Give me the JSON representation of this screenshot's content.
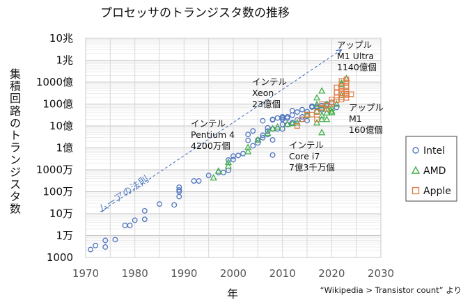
{
  "chart_data": {
    "type": "scatter",
    "title": "プロセッサのトランジスタ数の推移",
    "xlabel": "年",
    "ylabel": "集積回路のトランジスタ数",
    "x_ticks": [
      "1970",
      "1980",
      "1990",
      "2000",
      "2010",
      "2020",
      "2030"
    ],
    "xlim": [
      1970,
      2030
    ],
    "y_scale": "log",
    "ylim": [
      1000,
      10000000000000
    ],
    "y_ticks": [
      {
        "value": 1000,
        "label": "1000"
      },
      {
        "value": 10000,
        "label": "1万"
      },
      {
        "value": 100000,
        "label": "10万"
      },
      {
        "value": 1000000,
        "label": "100万"
      },
      {
        "value": 10000000,
        "label": "1000万"
      },
      {
        "value": 100000000,
        "label": "1億"
      },
      {
        "value": 1000000000,
        "label": "10億"
      },
      {
        "value": 10000000000,
        "label": "100億"
      },
      {
        "value": 100000000000,
        "label": "1000億"
      },
      {
        "value": 1000000000000,
        "label": "1兆"
      },
      {
        "value": 10000000000000,
        "label": "10兆"
      }
    ],
    "grid": true,
    "legend_position": "right",
    "series": [
      {
        "name": "Intel",
        "marker": "circle",
        "color": "#4f74c0",
        "points": [
          [
            1971,
            2300
          ],
          [
            1972,
            3500
          ],
          [
            1974,
            3000
          ],
          [
            1974,
            6000
          ],
          [
            1976,
            6500
          ],
          [
            1978,
            29000
          ],
          [
            1979,
            29000
          ],
          [
            1980,
            50000
          ],
          [
            1982,
            55000
          ],
          [
            1982,
            134000
          ],
          [
            1985,
            275000
          ],
          [
            1988,
            250000
          ],
          [
            1989,
            1000000
          ],
          [
            1989,
            1200000
          ],
          [
            1989,
            1600000
          ],
          [
            1989,
            600000
          ],
          [
            1992,
            3100000
          ],
          [
            1993,
            3100000
          ],
          [
            1995,
            5500000
          ],
          [
            1997,
            7500000
          ],
          [
            1998,
            7500000
          ],
          [
            1999,
            9500000
          ],
          [
            1999,
            28000000
          ],
          [
            2000,
            42000000
          ],
          [
            2000,
            29000000
          ],
          [
            2001,
            45000000
          ],
          [
            2002,
            55000000
          ],
          [
            2003,
            220000000
          ],
          [
            2003,
            410000000
          ],
          [
            2004,
            592000000
          ],
          [
            2004,
            125000000
          ],
          [
            2005,
            230000000
          ],
          [
            2005,
            169000000
          ],
          [
            2006,
            291000000
          ],
          [
            2006,
            1720000000
          ],
          [
            2006,
            376000000
          ],
          [
            2007,
            410000000
          ],
          [
            2007,
            820000000
          ],
          [
            2008,
            731000000
          ],
          [
            2008,
            1900000000
          ],
          [
            2008,
            47000000
          ],
          [
            2008,
            2000000000
          ],
          [
            2009,
            2300000000
          ],
          [
            2010,
            1170000000
          ],
          [
            2010,
            2300000000
          ],
          [
            2010,
            2600000000
          ],
          [
            2010,
            2000000000
          ],
          [
            2011,
            2270000000
          ],
          [
            2011,
            2600000000
          ],
          [
            2012,
            3100000000
          ],
          [
            2012,
            5000000000
          ],
          [
            2012,
            1400000000
          ],
          [
            2013,
            4310000000
          ],
          [
            2014,
            5560000000
          ],
          [
            2014,
            2600000000
          ],
          [
            2015,
            4500000000
          ],
          [
            2016,
            7200000000
          ],
          [
            2016,
            8000000000
          ],
          [
            2017,
            7000000000
          ],
          [
            2017,
            8000000000
          ],
          [
            2018,
            5500000000
          ],
          [
            2018,
            8500000000
          ],
          [
            2019,
            10000000000
          ],
          [
            2020,
            12000000000
          ],
          [
            2021,
            7000000000
          ],
          [
            2014,
            2000000000
          ],
          [
            2010,
            730000000
          ],
          [
            2015,
            1750000000
          ],
          [
            2013,
            1860000000
          ],
          [
            2011,
            1160000000
          ],
          [
            2007,
            582000000
          ],
          [
            2008,
            230000000
          ],
          [
            2009,
            731000000
          ],
          [
            2012,
            1400000000
          ],
          [
            2019,
            8000000000
          ]
        ]
      },
      {
        "name": "AMD",
        "marker": "triangle",
        "color": "#3fae49",
        "points": [
          [
            1996,
            4300000
          ],
          [
            1997,
            8800000
          ],
          [
            1999,
            22000000
          ],
          [
            1999,
            15000000
          ],
          [
            2003,
            105000000
          ],
          [
            2003,
            68000000
          ],
          [
            2005,
            233000000
          ],
          [
            2007,
            463000000
          ],
          [
            2008,
            758000000
          ],
          [
            2009,
            904000000
          ],
          [
            2011,
            1200000000
          ],
          [
            2012,
            1300000000
          ],
          [
            2013,
            1400000000
          ],
          [
            2015,
            3100000000
          ],
          [
            2017,
            4800000000
          ],
          [
            2017,
            19200000000
          ],
          [
            2017,
            1400000000
          ],
          [
            2018,
            6500000000
          ],
          [
            2018,
            3000000000
          ],
          [
            2018,
            500000000
          ],
          [
            2018,
            39540000000
          ],
          [
            2019,
            4000000000
          ],
          [
            2019,
            6000000000
          ],
          [
            2019,
            9900000000
          ],
          [
            2019,
            2000000000
          ],
          [
            2020,
            4800000000
          ],
          [
            2020,
            4100000000
          ],
          [
            2021,
            10000000000
          ],
          [
            2022,
            78000000000
          ],
          [
            2022,
            25000000000
          ],
          [
            2023,
            146000000000
          ],
          [
            2022,
            90000000000
          ],
          [
            2017,
            9600000000
          ],
          [
            2018,
            2000000000
          ],
          [
            2020,
            6500000000
          ]
        ]
      },
      {
        "name": "Apple",
        "marker": "square",
        "color": "#e07b43",
        "points": [
          [
            2013,
            1000000000
          ],
          [
            2014,
            2000000000
          ],
          [
            2015,
            3300000000
          ],
          [
            2016,
            3300000000
          ],
          [
            2017,
            4300000000
          ],
          [
            2017,
            2000000000
          ],
          [
            2018,
            6900000000
          ],
          [
            2018,
            10000000000
          ],
          [
            2019,
            8500000000
          ],
          [
            2019,
            6000000000
          ],
          [
            2020,
            11800000000
          ],
          [
            2020,
            16000000000
          ],
          [
            2020,
            10000000000
          ],
          [
            2021,
            15000000000
          ],
          [
            2021,
            34000000000
          ],
          [
            2021,
            57000000000
          ],
          [
            2021,
            20000000000
          ],
          [
            2022,
            20000000000
          ],
          [
            2022,
            114000000000
          ],
          [
            2022,
            16000000000
          ],
          [
            2022,
            40000000000
          ],
          [
            2022,
            30000000000
          ],
          [
            2023,
            19000000000
          ],
          [
            2023,
            25000000000
          ],
          [
            2023,
            92000000000
          ],
          [
            2023,
            134000000000
          ],
          [
            2023,
            67000000000
          ],
          [
            2023,
            37000000000
          ],
          [
            2023,
            58000000000
          ],
          [
            2024,
            28000000000
          ],
          [
            2023,
            108000000000
          ],
          [
            2022,
            57000000000
          ],
          [
            2021,
            33700000000
          ],
          [
            2022,
            67000000000
          ],
          [
            2023,
            29000000000
          ]
        ]
      }
    ],
    "annotations": [
      {
        "lines": [
          "アップル",
          "M1 Ultra",
          "1140億個"
        ]
      },
      {
        "lines": [
          "インテル",
          "Xeon",
          "23億個"
        ]
      },
      {
        "lines": [
          "アップル",
          "M1",
          "160億個"
        ]
      },
      {
        "lines": [
          "インテル",
          "Pentium 4",
          "4200万個"
        ]
      },
      {
        "lines": [
          "インテル",
          "Core i7",
          "7億3千万個"
        ]
      }
    ],
    "trend_label": "ムーアの法則",
    "trend_line": {
      "from": [
        1973,
        120000
      ],
      "to": [
        2022,
        3000000000000
      ]
    },
    "source_note": "“Wikipedia >  Transistor count” より"
  }
}
